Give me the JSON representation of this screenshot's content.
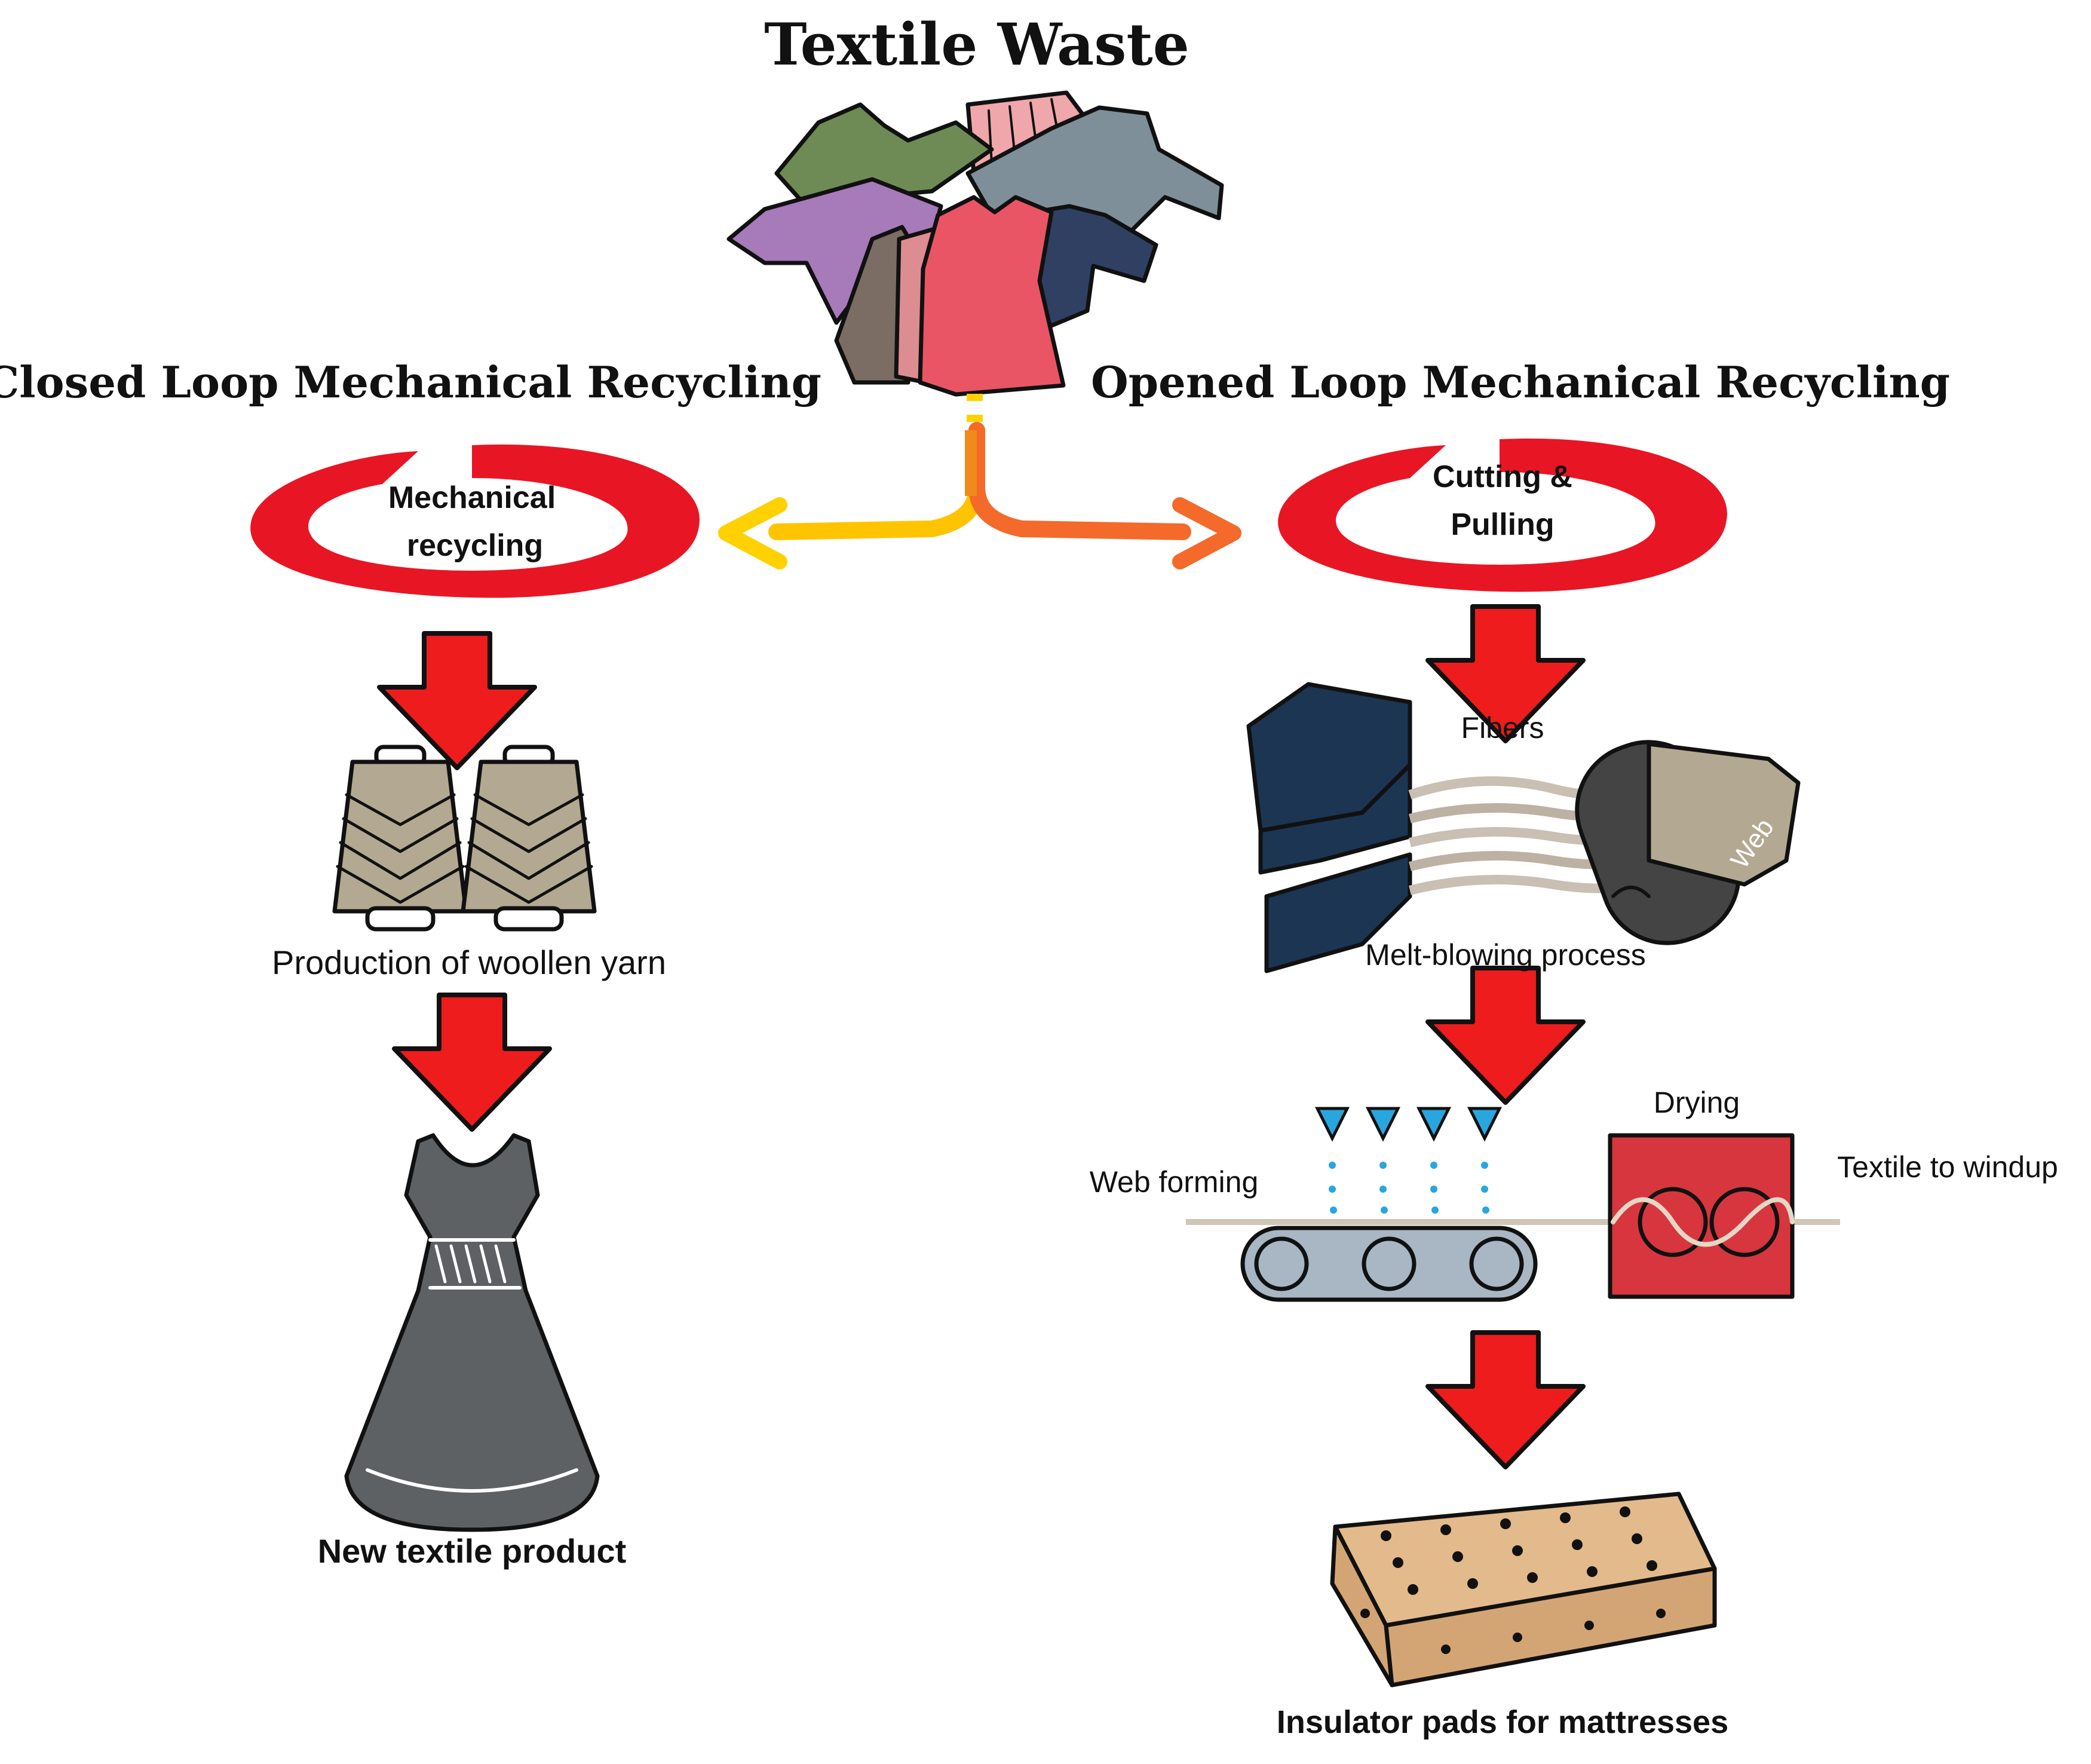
{
  "title": "Textile Waste",
  "closed_loop": {
    "heading": "Closed Loop Mechanical Recycling",
    "process_label_line1": "Mechanical",
    "process_label_line2": "recycling",
    "yarn_caption": "Production of woollen yarn",
    "product_caption": "New textile product"
  },
  "open_loop": {
    "heading": "Opened Loop Mechanical Recycling",
    "process_label_line1": "Cutting &",
    "process_label_line2": "Pulling",
    "fibers_label": "Fibers",
    "web_label": "Web",
    "meltblowing_caption": "Melt-blowing process",
    "web_forming_label": "Web forming",
    "drying_label": "Drying",
    "windup_label": "Textile to windup",
    "product_caption": "Insulator pads for mattresses"
  },
  "colors": {
    "arrow_red": "#ee1c1c",
    "swirl_red": "#e81624",
    "arrow_yellow": "#ffd100",
    "arrow_orange": "#f46a2a",
    "navy_block": "#1c3553",
    "dress_gray": "#5d6163",
    "yarn_tan": "#b3a892",
    "dryer_red": "#d8363f",
    "conveyor_blue": "#a9b6c3",
    "mattress_tan": "#e3ba8c",
    "nozzle_blue": "#29a6de"
  }
}
